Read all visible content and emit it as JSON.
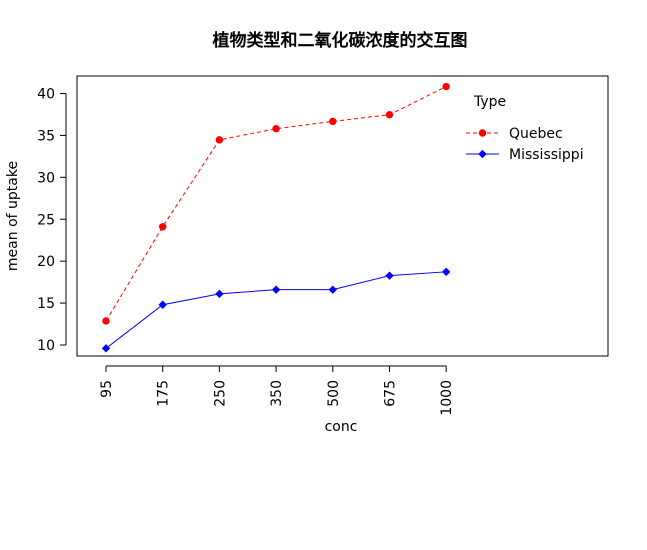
{
  "chart_data": {
    "type": "line",
    "title": "植物类型和二氧化碳浓度的交互图",
    "xlabel": "conc",
    "ylabel": "mean of  uptake",
    "categories": [
      "95",
      "175",
      "250",
      "350",
      "500",
      "675",
      "1000"
    ],
    "ylim": [
      8.5,
      42
    ],
    "yticks": [
      10,
      15,
      20,
      25,
      30,
      35,
      40
    ],
    "legend": {
      "title": "Type",
      "placement": "top-right-inside"
    },
    "series": [
      {
        "name": "Quebec",
        "color": "#ff0000",
        "line": "dashed",
        "marker": "circle",
        "values": [
          12.87,
          24.1,
          34.47,
          35.8,
          36.67,
          37.47,
          40.83
        ]
      },
      {
        "name": "Mississippi",
        "color": "#0000ff",
        "line": "solid",
        "marker": "diamond",
        "values": [
          9.6,
          14.8,
          16.1,
          16.6,
          16.6,
          18.27,
          18.73
        ]
      }
    ]
  }
}
